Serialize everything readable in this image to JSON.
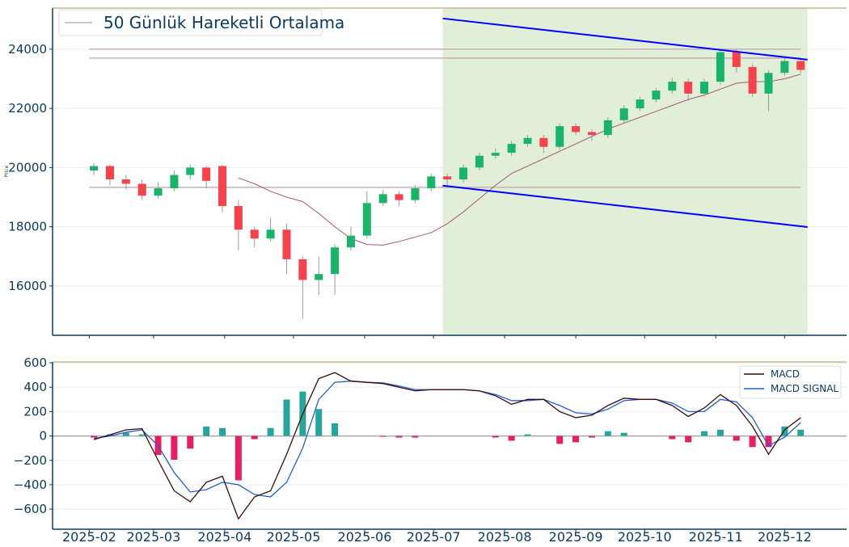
{
  "colors": {
    "up": "#18b46a",
    "down": "#f5424b",
    "ma": "#a8557a",
    "hline": "#c9aeb4",
    "channel": "#0000ff",
    "channel_fill": "#e1efd9",
    "macd": "#3b0a0a",
    "signal": "#1f5fd6",
    "hist_up": "#26a69a",
    "hist_down": "#e91e63",
    "axis": "#0b3b60",
    "top_border": "#c8b98a"
  },
  "chart_data": [
    {
      "type": "candlestick",
      "ylabel": "Price",
      "legend": {
        "position": "top-left",
        "entries": [
          "50 Günlük Hareketli Ortalama"
        ]
      },
      "ylim": [
        14330,
        25390
      ],
      "xlim": [
        "2025-01-16",
        "2025-12-28"
      ],
      "yticks": [
        "16000",
        "18000",
        "20000",
        "22000",
        "24000"
      ],
      "grid": true,
      "candles": [
        {
          "date": "2025-02-03",
          "o": 19900,
          "h": 20150,
          "l": 19750,
          "c": 20050
        },
        {
          "date": "2025-02-10",
          "o": 20050,
          "h": 20100,
          "l": 19400,
          "c": 19600
        },
        {
          "date": "2025-02-17",
          "o": 19600,
          "h": 19750,
          "l": 19250,
          "c": 19450
        },
        {
          "date": "2025-02-24",
          "o": 19450,
          "h": 19600,
          "l": 18900,
          "c": 19050
        },
        {
          "date": "2025-03-03",
          "o": 19050,
          "h": 19500,
          "l": 18950,
          "c": 19300
        },
        {
          "date": "2025-03-10",
          "o": 19300,
          "h": 19900,
          "l": 19200,
          "c": 19750
        },
        {
          "date": "2025-03-17",
          "o": 19750,
          "h": 20100,
          "l": 19600,
          "c": 20000
        },
        {
          "date": "2025-03-24",
          "o": 20000,
          "h": 20050,
          "l": 19300,
          "c": 19550
        },
        {
          "date": "2025-03-31",
          "o": 20050,
          "h": 20100,
          "l": 18500,
          "c": 18700
        },
        {
          "date": "2025-04-07",
          "o": 18700,
          "h": 18900,
          "l": 17200,
          "c": 17900
        },
        {
          "date": "2025-04-14",
          "o": 17900,
          "h": 18000,
          "l": 17300,
          "c": 17600
        },
        {
          "date": "2025-04-21",
          "o": 17600,
          "h": 18300,
          "l": 17500,
          "c": 17900
        },
        {
          "date": "2025-04-28",
          "o": 17900,
          "h": 18100,
          "l": 16400,
          "c": 16900
        },
        {
          "date": "2025-05-05",
          "o": 16900,
          "h": 17000,
          "l": 14900,
          "c": 16200
        },
        {
          "date": "2025-05-12",
          "o": 16200,
          "h": 17000,
          "l": 15700,
          "c": 16400
        },
        {
          "date": "2025-05-19",
          "o": 16400,
          "h": 17400,
          "l": 15700,
          "c": 17300
        },
        {
          "date": "2025-05-26",
          "o": 17300,
          "h": 18000,
          "l": 17200,
          "c": 17700
        },
        {
          "date": "2025-06-02",
          "o": 17700,
          "h": 19200,
          "l": 17600,
          "c": 18800
        },
        {
          "date": "2025-06-09",
          "o": 18800,
          "h": 19250,
          "l": 18700,
          "c": 19100
        },
        {
          "date": "2025-06-16",
          "o": 19100,
          "h": 19200,
          "l": 18700,
          "c": 18900
        },
        {
          "date": "2025-06-23",
          "o": 18900,
          "h": 19400,
          "l": 18800,
          "c": 19300
        },
        {
          "date": "2025-06-30",
          "o": 19300,
          "h": 19800,
          "l": 19200,
          "c": 19700
        },
        {
          "date": "2025-07-07",
          "o": 19700,
          "h": 19800,
          "l": 19400,
          "c": 19600
        },
        {
          "date": "2025-07-14",
          "o": 19600,
          "h": 20100,
          "l": 19500,
          "c": 20000
        },
        {
          "date": "2025-07-21",
          "o": 20000,
          "h": 20500,
          "l": 19900,
          "c": 20400
        },
        {
          "date": "2025-07-28",
          "o": 20400,
          "h": 20650,
          "l": 20300,
          "c": 20500
        },
        {
          "date": "2025-08-04",
          "o": 20500,
          "h": 20900,
          "l": 20400,
          "c": 20800
        },
        {
          "date": "2025-08-11",
          "o": 20800,
          "h": 21100,
          "l": 20700,
          "c": 21000
        },
        {
          "date": "2025-08-18",
          "o": 21000,
          "h": 21100,
          "l": 20500,
          "c": 20700
        },
        {
          "date": "2025-08-25",
          "o": 20700,
          "h": 21500,
          "l": 20600,
          "c": 21400
        },
        {
          "date": "2025-09-01",
          "o": 21400,
          "h": 21500,
          "l": 21100,
          "c": 21200
        },
        {
          "date": "2025-09-08",
          "o": 21200,
          "h": 21300,
          "l": 20900,
          "c": 21100
        },
        {
          "date": "2025-09-15",
          "o": 21100,
          "h": 21700,
          "l": 21000,
          "c": 21600
        },
        {
          "date": "2025-09-22",
          "o": 21600,
          "h": 22100,
          "l": 21500,
          "c": 22000
        },
        {
          "date": "2025-09-29",
          "o": 22000,
          "h": 22400,
          "l": 21900,
          "c": 22300
        },
        {
          "date": "2025-10-06",
          "o": 22300,
          "h": 22700,
          "l": 22200,
          "c": 22600
        },
        {
          "date": "2025-10-13",
          "o": 22600,
          "h": 23050,
          "l": 22500,
          "c": 22900
        },
        {
          "date": "2025-10-20",
          "o": 22900,
          "h": 23000,
          "l": 22250,
          "c": 22500
        },
        {
          "date": "2025-10-27",
          "o": 22500,
          "h": 23000,
          "l": 22400,
          "c": 22900
        },
        {
          "date": "2025-11-03",
          "o": 22900,
          "h": 24000,
          "l": 22800,
          "c": 23900
        },
        {
          "date": "2025-11-10",
          "o": 23900,
          "h": 24000,
          "l": 23200,
          "c": 23400
        },
        {
          "date": "2025-11-17",
          "o": 23400,
          "h": 23500,
          "l": 22400,
          "c": 22500
        },
        {
          "date": "2025-11-24",
          "o": 22500,
          "h": 23300,
          "l": 21900,
          "c": 23200
        },
        {
          "date": "2025-12-01",
          "o": 23200,
          "h": 23700,
          "l": 23100,
          "c": 23600
        },
        {
          "date": "2025-12-08",
          "o": 23600,
          "h": 23650,
          "l": 23200,
          "c": 23300
        }
      ],
      "moving_average_50": [
        [
          "2025-04-07",
          19650
        ],
        [
          "2025-04-14",
          19450
        ],
        [
          "2025-04-21",
          19200
        ],
        [
          "2025-04-28",
          19000
        ],
        [
          "2025-05-05",
          18850
        ],
        [
          "2025-05-12",
          18450
        ],
        [
          "2025-05-19",
          18000
        ],
        [
          "2025-05-26",
          17600
        ],
        [
          "2025-06-02",
          17400
        ],
        [
          "2025-06-09",
          17380
        ],
        [
          "2025-06-16",
          17500
        ],
        [
          "2025-06-23",
          17650
        ],
        [
          "2025-06-30",
          17800
        ],
        [
          "2025-07-07",
          18100
        ],
        [
          "2025-07-14",
          18500
        ],
        [
          "2025-07-21",
          18950
        ],
        [
          "2025-07-28",
          19400
        ],
        [
          "2025-08-04",
          19800
        ],
        [
          "2025-08-11",
          20050
        ],
        [
          "2025-08-18",
          20300
        ],
        [
          "2025-08-25",
          20550
        ],
        [
          "2025-09-01",
          20800
        ],
        [
          "2025-09-08",
          21050
        ],
        [
          "2025-09-15",
          21300
        ],
        [
          "2025-09-22",
          21500
        ],
        [
          "2025-09-29",
          21700
        ],
        [
          "2025-10-06",
          21900
        ],
        [
          "2025-10-13",
          22100
        ],
        [
          "2025-10-20",
          22300
        ],
        [
          "2025-10-27",
          22450
        ],
        [
          "2025-11-03",
          22650
        ],
        [
          "2025-11-10",
          22850
        ],
        [
          "2025-11-17",
          22900
        ],
        [
          "2025-11-24",
          22900
        ],
        [
          "2025-12-01",
          23000
        ],
        [
          "2025-12-08",
          23150
        ]
      ],
      "horizontal_levels": [
        24000,
        23700,
        19330
      ],
      "horizontal_range": [
        "2025-02-01",
        "2025-12-08"
      ],
      "channel": {
        "upper": [
          [
            "2025-07-05",
            25040
          ],
          [
            "2025-12-11",
            23645
          ]
        ],
        "lower": [
          [
            "2025-07-05",
            19390
          ],
          [
            "2025-12-11",
            17990
          ]
        ]
      }
    },
    {
      "type": "line",
      "ylim": [
        -765,
        607
      ],
      "yticks": [
        "−600",
        "−400",
        "−200",
        "0",
        "200",
        "400",
        "600"
      ],
      "xticks": [
        "2025-02",
        "2025-03",
        "2025-04",
        "2025-05",
        "2025-06",
        "2025-07",
        "2025-08",
        "2025-09",
        "2025-10",
        "2025-11",
        "2025-12"
      ],
      "legend": {
        "position": "top-right"
      },
      "grid": true,
      "dates": [
        "2025-02-03",
        "2025-02-10",
        "2025-02-17",
        "2025-02-24",
        "2025-03-03",
        "2025-03-10",
        "2025-03-17",
        "2025-03-24",
        "2025-03-31",
        "2025-04-07",
        "2025-04-14",
        "2025-04-21",
        "2025-04-28",
        "2025-05-05",
        "2025-05-12",
        "2025-05-19",
        "2025-05-26",
        "2025-06-02",
        "2025-06-09",
        "2025-06-16",
        "2025-06-23",
        "2025-06-30",
        "2025-07-07",
        "2025-07-14",
        "2025-07-21",
        "2025-07-28",
        "2025-08-04",
        "2025-08-11",
        "2025-08-18",
        "2025-08-25",
        "2025-09-01",
        "2025-09-08",
        "2025-09-15",
        "2025-09-22",
        "2025-09-29",
        "2025-10-06",
        "2025-10-13",
        "2025-10-20",
        "2025-10-27",
        "2025-11-03",
        "2025-11-10",
        "2025-11-17",
        "2025-11-24",
        "2025-12-01",
        "2025-12-08"
      ],
      "series": [
        {
          "name": "MACD",
          "values": [
            -30,
            10,
            50,
            60,
            -200,
            -450,
            -540,
            -380,
            -330,
            -680,
            -500,
            -450,
            -150,
            180,
            470,
            520,
            450,
            440,
            430,
            400,
            370,
            380,
            380,
            380,
            370,
            330,
            260,
            300,
            300,
            200,
            150,
            170,
            250,
            310,
            300,
            300,
            250,
            160,
            230,
            340,
            250,
            80,
            -150,
            50,
            150
          ]
        },
        {
          "name": "MACD SIGNAL",
          "values": [
            -20,
            0,
            30,
            50,
            -80,
            -300,
            -460,
            -440,
            -380,
            -400,
            -480,
            -500,
            -380,
            -100,
            300,
            440,
            450,
            440,
            435,
            410,
            380,
            380,
            380,
            380,
            370,
            340,
            290,
            290,
            300,
            250,
            190,
            180,
            220,
            290,
            300,
            300,
            270,
            200,
            200,
            300,
            280,
            150,
            -80,
            -10,
            110
          ]
        }
      ]
    }
  ]
}
